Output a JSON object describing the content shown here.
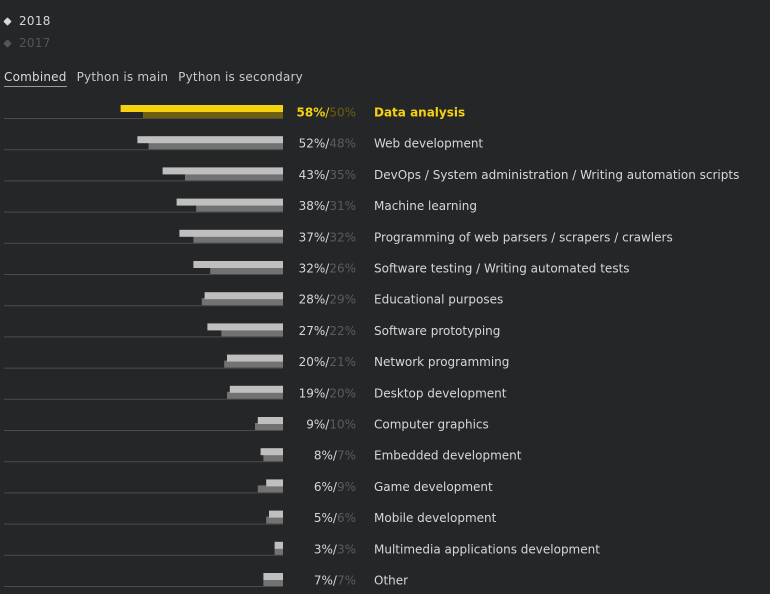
{
  "legend": {
    "year_current": "2018",
    "year_previous": "2017"
  },
  "tabs": [
    "Combined",
    "Python is main",
    "Python is secondary"
  ],
  "colors": {
    "accent": "#f5d20f",
    "accent_dark": "#6e5f10",
    "bar_current": "#bfbfbf",
    "bar_previous": "#727272",
    "text": "#d7d7d7",
    "text_previous": "#5c5c5c",
    "axis_line": "#4c4c4c"
  },
  "chart_data": {
    "type": "bar",
    "orientation": "horizontal",
    "direction": "right-to-left",
    "categories": [
      "Data analysis",
      "Web development",
      "DevOps / System administration / Writing automation scripts",
      "Machine learning",
      "Programming of web parsers / scrapers / crawlers",
      "Software testing / Writing automated tests",
      "Educational purposes",
      "Software prototyping",
      "Network programming",
      "Desktop development",
      "Computer graphics",
      "Embedded development",
      "Game development",
      "Mobile development",
      "Multimedia applications development",
      "Other"
    ],
    "series": [
      {
        "name": "2018",
        "values": [
          58,
          52,
          43,
          38,
          37,
          32,
          28,
          27,
          20,
          19,
          9,
          8,
          6,
          5,
          3,
          7
        ]
      },
      {
        "name": "2017",
        "values": [
          50,
          48,
          35,
          31,
          32,
          26,
          29,
          22,
          21,
          20,
          10,
          7,
          9,
          6,
          3,
          7
        ]
      }
    ],
    "labels": [
      [
        "58%",
        "50%"
      ],
      [
        "52%",
        "48%"
      ],
      [
        "43%",
        "35%"
      ],
      [
        "38%",
        "31%"
      ],
      [
        "37%",
        "32%"
      ],
      [
        "32%",
        "26%"
      ],
      [
        "28%",
        "29%"
      ],
      [
        "27%",
        "22%"
      ],
      [
        "20%",
        "21%"
      ],
      [
        "19%",
        "20%"
      ],
      [
        "9%",
        "10%"
      ],
      [
        "8%",
        "7%"
      ],
      [
        "6%",
        "9%"
      ],
      [
        "5%",
        "6%"
      ],
      [
        "3%",
        "3%"
      ],
      [
        "7%",
        "7%"
      ]
    ],
    "highlight_index": 0
  }
}
